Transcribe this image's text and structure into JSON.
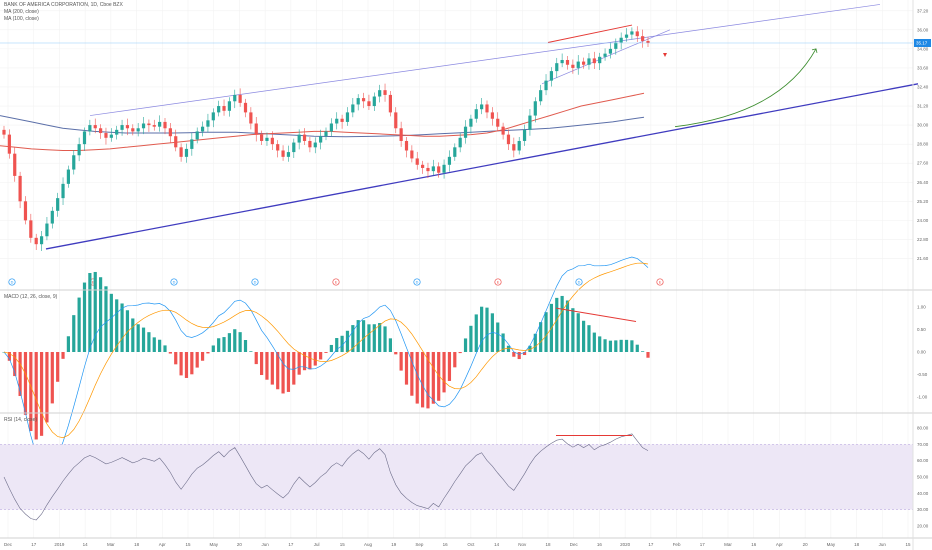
{
  "header": {
    "title": "BANK OF AMERICA CORPORATION, 1D, Cboe BZX",
    "ma1": "MA (200, close)",
    "ma2": "MA (100, close)"
  },
  "macd_panel": {
    "title": "MACD (12, 26, close, 9)"
  },
  "rsi_panel": {
    "title": "RSI (14, close)"
  },
  "colors": {
    "candle_up": "#26a69a",
    "candle_down": "#ef5350",
    "ma200": "#5b6fa8",
    "ma100": "#e05a4e",
    "trendline": "#3f3bbf",
    "channel": "#8a88e0",
    "wedge_red": "#e53935",
    "curve_arrow": "#3c8d2f",
    "macd_line": "#2196f3",
    "signal_line": "#ff9800",
    "rsi_line": "#7e57c2",
    "rsi_band": "#ede7f6",
    "last_price": "#1e88e5"
  },
  "chart_data": [
    {
      "type": "candlestick",
      "name": "price",
      "price_axis": [
        "37.20",
        "36.00",
        "34.80",
        "33.60",
        "32.40",
        "31.20",
        "30.00",
        "28.80",
        "27.60",
        "26.40",
        "25.20",
        "24.00",
        "22.80",
        "21.60"
      ],
      "ylim": [
        21.0,
        37.5
      ],
      "last_price_label": "35.17",
      "x_axis": [
        "Dec",
        "17",
        "2019",
        "14",
        "Mar",
        "18",
        "Apr",
        "15",
        "May",
        "20",
        "Jun",
        "17",
        "Jul",
        "15",
        "Aug",
        "19",
        "Sep",
        "16",
        "Oct",
        "14",
        "Nov",
        "18",
        "Dec",
        "16",
        "2020",
        "17",
        "Feb",
        "17",
        "Mar",
        "16",
        "Apr",
        "20",
        "May",
        "18",
        "Jun",
        "15"
      ],
      "closes": [
        29.4,
        28.2,
        26.8,
        25.2,
        24.0,
        22.9,
        22.5,
        23.0,
        23.8,
        24.6,
        25.4,
        26.3,
        27.2,
        28.1,
        28.8,
        29.6,
        30.0,
        29.8,
        29.5,
        29.2,
        29.4,
        29.7,
        30.0,
        29.8,
        29.6,
        29.8,
        30.1,
        30.0,
        29.9,
        30.2,
        29.8,
        29.3,
        28.6,
        28.0,
        28.5,
        29.1,
        29.6,
        29.9,
        30.3,
        30.8,
        31.2,
        30.9,
        31.5,
        31.9,
        31.4,
        30.8,
        30.1,
        29.4,
        29.0,
        29.2,
        28.8,
        28.4,
        28.0,
        28.3,
        28.9,
        29.4,
        29.0,
        28.6,
        28.9,
        29.3,
        29.6,
        30.1,
        30.4,
        30.2,
        30.8,
        31.3,
        31.7,
        31.5,
        31.2,
        31.8,
        32.2,
        31.9,
        30.8,
        29.8,
        29.0,
        28.4,
        27.9,
        27.5,
        27.3,
        27.1,
        27.4,
        27.0,
        27.5,
        28.0,
        28.6,
        29.2,
        29.9,
        30.4,
        31.0,
        31.3,
        30.8,
        30.4,
        29.9,
        29.4,
        28.8,
        28.4,
        29.0,
        29.7,
        30.6,
        31.5,
        32.2,
        32.8,
        33.4,
        33.9,
        34.1,
        33.8,
        33.6,
        34.0,
        33.8,
        34.2,
        33.9,
        34.3,
        34.5,
        34.8,
        35.2,
        35.5,
        35.7,
        35.9,
        35.6,
        35.3,
        35.17
      ],
      "ma200": [
        30.6,
        30.4,
        30.2,
        30.0,
        29.8,
        29.7,
        29.6,
        29.55,
        29.5,
        29.5,
        29.5,
        29.5,
        29.52,
        29.55,
        29.55,
        29.55,
        29.5,
        29.45,
        29.4,
        29.35,
        29.3,
        29.28,
        29.27,
        29.28,
        29.3,
        29.32,
        29.35,
        29.4,
        29.45,
        29.5,
        29.55,
        29.6,
        29.65,
        29.7,
        29.75,
        29.8,
        29.9,
        30.0,
        30.1,
        30.2,
        30.35,
        30.5
      ],
      "ma100": [
        28.7,
        28.6,
        28.5,
        28.45,
        28.4,
        28.4,
        28.45,
        28.5,
        28.6,
        28.7,
        28.8,
        28.9,
        29.0,
        29.1,
        29.2,
        29.3,
        29.4,
        29.45,
        29.5,
        29.55,
        29.6,
        29.6,
        29.55,
        29.5,
        29.45,
        29.4,
        29.35,
        29.3,
        29.3,
        29.35,
        29.4,
        29.5,
        29.7,
        30.0,
        30.3,
        30.6,
        30.9,
        31.2,
        31.4,
        31.6,
        31.8,
        32.0
      ],
      "markers": [
        "D",
        "E",
        "D",
        "D",
        "E",
        "D",
        "E",
        "D",
        "E"
      ]
    },
    {
      "type": "bar",
      "name": "macd",
      "axis": [
        "1.00",
        "0.50",
        "0.00",
        "-0.50",
        "-1.00"
      ],
      "ylim": [
        -1.25,
        1.25
      ]
    },
    {
      "type": "line",
      "name": "rsi",
      "axis": [
        "80.00",
        "70.00",
        "60.00",
        "50.00",
        "40.00",
        "30.00",
        "20.00"
      ],
      "ylim": [
        15,
        85
      ],
      "band": [
        30,
        70
      ]
    }
  ]
}
